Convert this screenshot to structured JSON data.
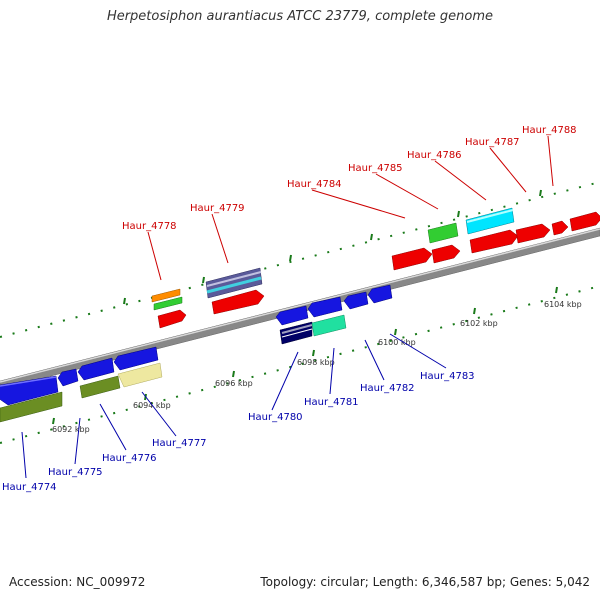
{
  "title": "Herpetosiphon aurantiacus ATCC 23779, complete genome",
  "accession": "Accession: NC_009972",
  "summary": "Topology: circular; Length: 6,346,587 bp; Genes: 5,042",
  "tick_labels": [
    "6092 kbp",
    "6094 kbp",
    "6096 kbp",
    "6098 kbp",
    "6100 kbp",
    "6102 kbp",
    "6104 kbp"
  ],
  "top_genes": [
    "Haur_4778",
    "Haur_4779",
    "Haur_4784",
    "Haur_4785",
    "Haur_4786",
    "Haur_4787",
    "Haur_4788"
  ],
  "bottom_genes": [
    "Haur_4774",
    "Haur_4775",
    "Haur_4776",
    "Haur_4777",
    "Haur_4780",
    "Haur_4781",
    "Haur_4782",
    "Haur_4783"
  ],
  "colors": {
    "forward_label": "#cc0000",
    "reverse_label": "#0000aa",
    "backbone": "#888888",
    "tick": "#1a7a1a"
  }
}
